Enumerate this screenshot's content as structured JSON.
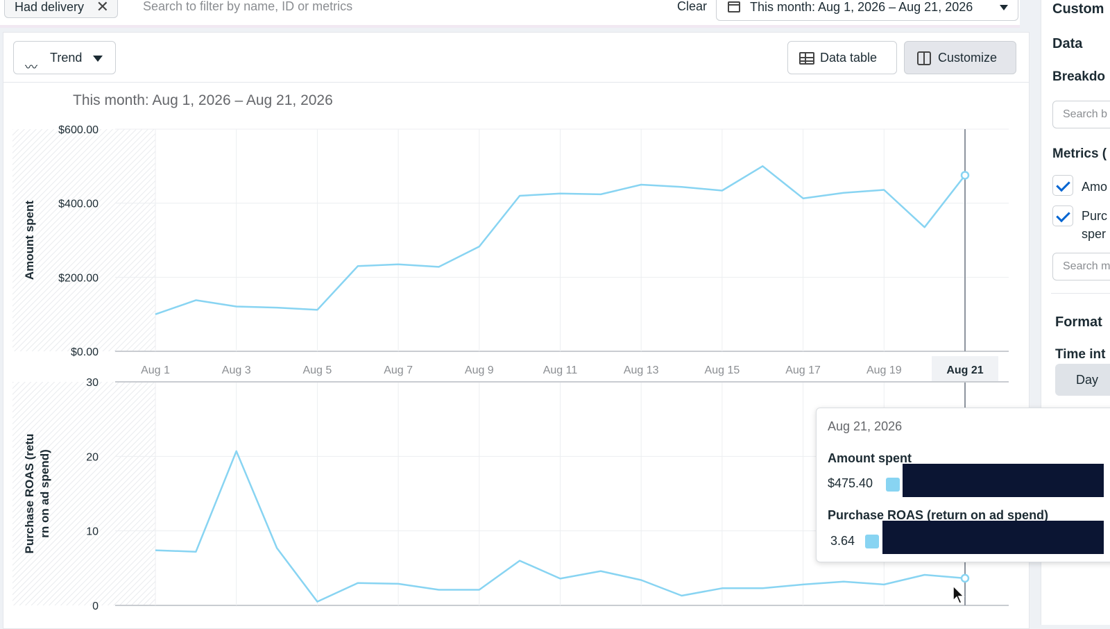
{
  "filter_bar": {
    "chip_label": "Had delivery",
    "search_placeholder": "Search to filter by name, ID or metrics",
    "clear_label": "Clear",
    "date_range_label": "This month: Aug 1, 2026 – Aug 21, 2026"
  },
  "toolbar": {
    "trend_label": "Trend",
    "data_table_label": "Data table",
    "customize_label": "Customize"
  },
  "chart_header": "This month: Aug 1, 2026 – Aug 21, 2026",
  "colors": {
    "series": "#88d4f2",
    "accent": "#0064d1",
    "redaction": "#0b1533"
  },
  "chart_data": [
    {
      "type": "line",
      "ylabel": "Amount spent",
      "ylim": [
        0,
        600
      ],
      "y_ticks": [
        "$0.00",
        "$200.00",
        "$400.00",
        "$600.00"
      ],
      "x_tick_labels": [
        "Aug 1",
        "Aug 3",
        "Aug 5",
        "Aug 7",
        "Aug 9",
        "Aug 11",
        "Aug 13",
        "Aug 15",
        "Aug 17",
        "Aug 19",
        "Aug 21"
      ],
      "x": [
        "Aug 1",
        "Aug 2",
        "Aug 3",
        "Aug 4",
        "Aug 5",
        "Aug 6",
        "Aug 7",
        "Aug 8",
        "Aug 9",
        "Aug 10",
        "Aug 11",
        "Aug 12",
        "Aug 13",
        "Aug 14",
        "Aug 15",
        "Aug 16",
        "Aug 17",
        "Aug 18",
        "Aug 19",
        "Aug 20",
        "Aug 21"
      ],
      "values": [
        100,
        138,
        121,
        118,
        112,
        230,
        235,
        228,
        283,
        420,
        426,
        424,
        450,
        444,
        434,
        500,
        413,
        428,
        436,
        335,
        475.4
      ],
      "grid": true
    },
    {
      "type": "line",
      "ylabel": "Purchase ROAS (return on ad spend)",
      "ylim": [
        0,
        30
      ],
      "y_ticks": [
        "0",
        "10",
        "20",
        "30"
      ],
      "x": [
        "Aug 1",
        "Aug 2",
        "Aug 3",
        "Aug 4",
        "Aug 5",
        "Aug 6",
        "Aug 7",
        "Aug 8",
        "Aug 9",
        "Aug 10",
        "Aug 11",
        "Aug 12",
        "Aug 13",
        "Aug 14",
        "Aug 15",
        "Aug 16",
        "Aug 17",
        "Aug 18",
        "Aug 19",
        "Aug 20",
        "Aug 21"
      ],
      "values": [
        7.4,
        7.2,
        20.7,
        7.7,
        0.5,
        3.0,
        2.9,
        2.1,
        2.1,
        6.0,
        3.6,
        4.6,
        3.4,
        1.3,
        2.3,
        2.3,
        2.8,
        3.2,
        2.8,
        4.1,
        3.64
      ],
      "grid": true
    }
  ],
  "highlight": {
    "date_label": "Aug 21"
  },
  "tooltip": {
    "date": "Aug 21, 2026",
    "metric1_name": "Amount spent",
    "metric1_value": "$475.40",
    "metric2_name": "Purchase ROAS (return on ad spend)",
    "metric2_value": "3.64"
  },
  "sidebar": {
    "title": "Custom",
    "data_heading": "Data",
    "breakdown_heading": "Breakdo",
    "breakdown_search": "Search b",
    "metrics_heading": "Metrics (",
    "metric1_label": "Amo",
    "metric2_label_line1": "Purc",
    "metric2_label_line2": "sper",
    "metrics_search": "Search m",
    "format_heading": "Format",
    "time_interval_heading": "Time int",
    "day_label": "Day"
  }
}
